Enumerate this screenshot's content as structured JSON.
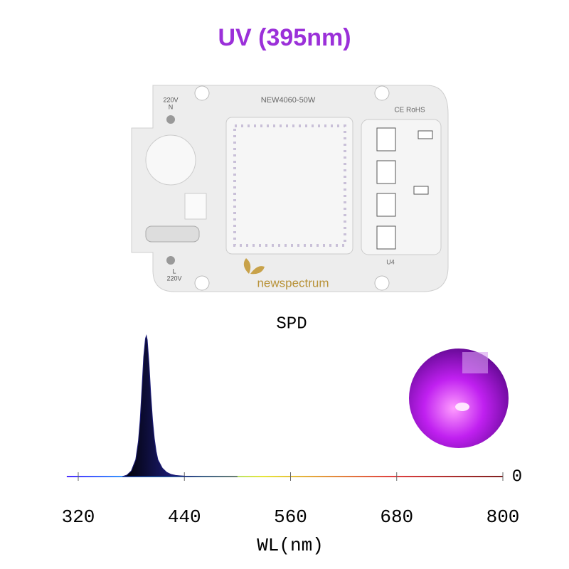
{
  "title": "UV (395nm)",
  "product": {
    "labels": [
      "220V",
      "N",
      "NEW4060-50W",
      "CE RoHS",
      "U4",
      "L",
      "220V",
      "newspectrum"
    ]
  },
  "chart_data": {
    "type": "area",
    "title": "SPD",
    "xlabel": "WL(nm)",
    "x": [
      370,
      375,
      380,
      385,
      388,
      390,
      392,
      394,
      396,
      397,
      398,
      400,
      402,
      404,
      406,
      408,
      410,
      415,
      420,
      425,
      430,
      440,
      460,
      500
    ],
    "series": [
      {
        "color": "#1c1c78",
        "values": [
          0,
          0.01,
          0.04,
          0.12,
          0.25,
          0.4,
          0.62,
          0.85,
          0.98,
          1.0,
          0.97,
          0.8,
          0.58,
          0.4,
          0.27,
          0.18,
          0.12,
          0.06,
          0.03,
          0.015,
          0.008,
          0.003,
          0.001,
          0
        ]
      }
    ],
    "xlim": [
      320,
      800
    ],
    "xticks": [
      320,
      440,
      560,
      680,
      800
    ],
    "ylim": [
      0,
      1
    ],
    "yticks": [
      0
    ]
  }
}
